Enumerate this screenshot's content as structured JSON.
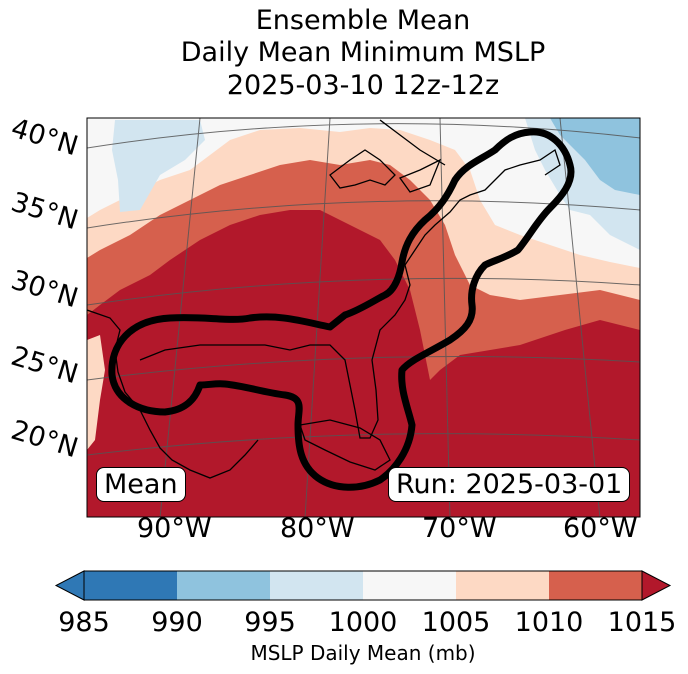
{
  "title": {
    "line1": "Ensemble Mean",
    "line2": "Daily Mean Minimum MSLP",
    "line3": "2025-03-10 12z-12z"
  },
  "map": {
    "lat_labels": [
      "40°N",
      "35°N",
      "30°N",
      "25°N",
      "20°N"
    ],
    "lon_labels": [
      "90°W",
      "80°W",
      "70°W",
      "60°W"
    ],
    "mean_label": "Mean",
    "run_label": "Run: 2025-03-01",
    "colors": {
      "985": "#2f78b5",
      "990": "#8fc3de",
      "995": "#d2e5f0",
      "1000": "#f7f7f7",
      "1005": "#fdd9c4",
      "1010": "#d6604d",
      "1015": "#b2182b"
    }
  },
  "colorbar": {
    "ticks": [
      "985",
      "990",
      "995",
      "1000",
      "1005",
      "1010",
      "1015"
    ],
    "label": "MSLP Daily Mean (mb)"
  }
}
